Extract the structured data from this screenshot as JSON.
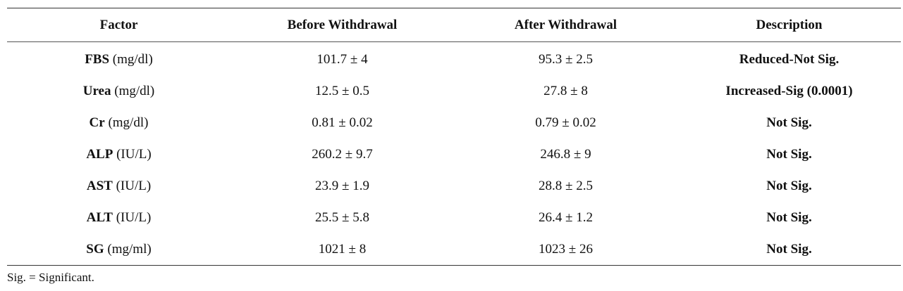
{
  "table": {
    "headers": [
      "Factor",
      "Before Withdrawal",
      "After Withdrawal",
      "Description"
    ],
    "rows": [
      {
        "abbr": "FBS",
        "unit": " (mg/dl)",
        "before": "101.7 ± 4",
        "after": "95.3 ± 2.5",
        "description": "Reduced-Not Sig."
      },
      {
        "abbr": "Urea",
        "unit": " (mg/dl)",
        "before": "12.5 ± 0.5",
        "after": "27.8 ± 8",
        "description": "Increased-Sig (0.0001)"
      },
      {
        "abbr": "Cr",
        "unit": " (mg/dl)",
        "before": "0.81 ± 0.02",
        "after": "0.79 ± 0.02",
        "description": "Not Sig."
      },
      {
        "abbr": "ALP",
        "unit": " (IU/L)",
        "before": "260.2 ± 9.7",
        "after": "246.8 ± 9",
        "description": "Not Sig."
      },
      {
        "abbr": "AST",
        "unit": " (IU/L)",
        "before": "23.9 ± 1.9",
        "after": "28.8 ± 2.5",
        "description": "Not Sig."
      },
      {
        "abbr": "ALT",
        "unit": " (IU/L)",
        "before": "25.5 ± 5.8",
        "after": "26.4 ± 1.2",
        "description": "Not Sig."
      },
      {
        "abbr": "SG",
        "unit": " (mg/ml)",
        "before": "1021 ± 8",
        "after": "1023 ± 26",
        "description": "Not Sig."
      }
    ]
  },
  "footnote": "Sig. = Significant."
}
